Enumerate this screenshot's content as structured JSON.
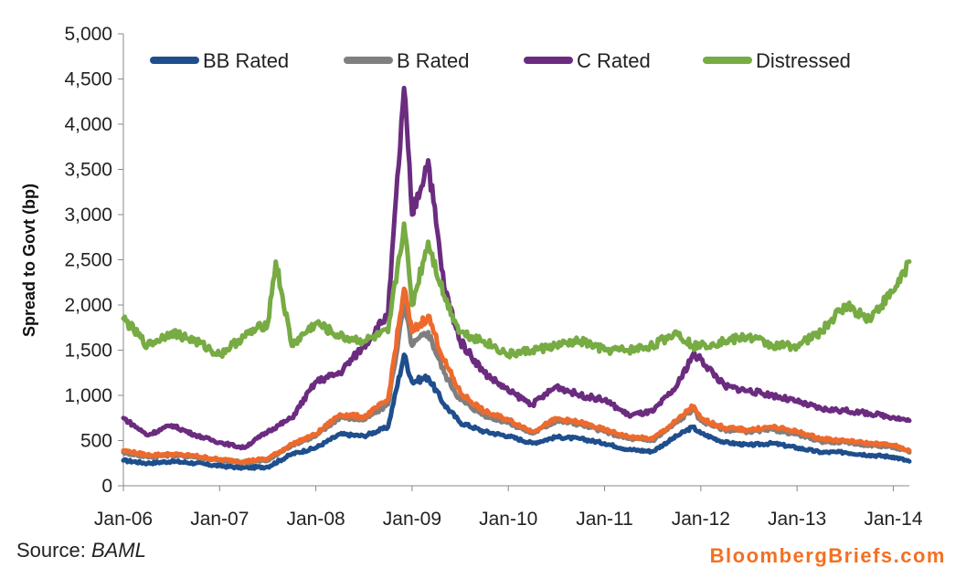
{
  "chart_data": {
    "type": "line",
    "title": "",
    "xlabel": "",
    "ylabel": "Spread to Govt (bp)",
    "ylim": [
      0,
      5000
    ],
    "y_ticks": [
      "0",
      "500",
      "1,000",
      "1,500",
      "2,000",
      "2,500",
      "3,000",
      "3,500",
      "4,000",
      "4,500",
      "5,000"
    ],
    "x_ticks": [
      "Jan-06",
      "Jan-07",
      "Jan-08",
      "Jan-09",
      "Jan-10",
      "Jan-11",
      "Jan-12",
      "Jan-13",
      "Jan-14"
    ],
    "x_range": [
      "2006-01",
      "2014-03"
    ],
    "grid": false,
    "legend_position": "top",
    "series": [
      {
        "name": "BB Rated",
        "color": "#1f4e8c",
        "x": [
          "2006-01",
          "2006-04",
          "2006-07",
          "2006-10",
          "2007-01",
          "2007-04",
          "2007-07",
          "2007-10",
          "2008-01",
          "2008-04",
          "2008-07",
          "2008-10",
          "2008-12",
          "2009-01",
          "2009-03",
          "2009-05",
          "2009-07",
          "2009-10",
          "2010-01",
          "2010-04",
          "2010-07",
          "2010-10",
          "2011-01",
          "2011-04",
          "2011-07",
          "2011-10",
          "2011-12",
          "2012-01",
          "2012-04",
          "2012-07",
          "2012-10",
          "2013-01",
          "2013-04",
          "2013-07",
          "2013-10",
          "2014-01",
          "2014-03"
        ],
        "values": [
          280,
          250,
          270,
          250,
          220,
          200,
          210,
          350,
          420,
          570,
          550,
          650,
          1450,
          1150,
          1200,
          900,
          700,
          600,
          550,
          470,
          540,
          520,
          470,
          400,
          380,
          550,
          650,
          580,
          480,
          450,
          470,
          420,
          370,
          370,
          340,
          320,
          270
        ]
      },
      {
        "name": "B Rated",
        "color": "#7f7f7f",
        "x": [
          "2006-01",
          "2006-04",
          "2006-07",
          "2006-10",
          "2007-01",
          "2007-04",
          "2007-07",
          "2007-10",
          "2008-01",
          "2008-04",
          "2008-07",
          "2008-10",
          "2008-12",
          "2009-01",
          "2009-03",
          "2009-05",
          "2009-07",
          "2009-10",
          "2010-01",
          "2010-04",
          "2010-07",
          "2010-10",
          "2011-01",
          "2011-04",
          "2011-07",
          "2011-10",
          "2011-12",
          "2012-01",
          "2012-04",
          "2012-07",
          "2012-10",
          "2013-01",
          "2013-04",
          "2013-07",
          "2013-10",
          "2014-01",
          "2014-03"
        ],
        "values": [
          370,
          320,
          340,
          320,
          280,
          260,
          280,
          450,
          550,
          760,
          730,
          900,
          2000,
          1550,
          1700,
          1250,
          950,
          780,
          700,
          580,
          720,
          680,
          600,
          520,
          500,
          700,
          850,
          720,
          620,
          600,
          620,
          570,
          490,
          480,
          450,
          430,
          370
        ]
      },
      {
        "name": "",
        "color": "#ee6a2c",
        "x": [
          "2006-01",
          "2006-04",
          "2006-07",
          "2006-10",
          "2007-01",
          "2007-04",
          "2007-07",
          "2007-10",
          "2008-01",
          "2008-04",
          "2008-07",
          "2008-10",
          "2008-12",
          "2009-01",
          "2009-03",
          "2009-05",
          "2009-07",
          "2009-10",
          "2010-01",
          "2010-04",
          "2010-07",
          "2010-10",
          "2011-01",
          "2011-04",
          "2011-07",
          "2011-10",
          "2011-12",
          "2012-01",
          "2012-04",
          "2012-07",
          "2012-10",
          "2013-01",
          "2013-04",
          "2013-07",
          "2013-10",
          "2014-01",
          "2014-03"
        ],
        "values": [
          390,
          340,
          350,
          330,
          290,
          270,
          300,
          460,
          570,
          790,
          760,
          950,
          2180,
          1700,
          1880,
          1380,
          1030,
          820,
          730,
          600,
          740,
          700,
          620,
          540,
          520,
          720,
          880,
          740,
          640,
          620,
          650,
          600,
          520,
          500,
          470,
          450,
          390
        ]
      },
      {
        "name": "C Rated",
        "color": "#6b2c80",
        "x": [
          "2006-01",
          "2006-04",
          "2006-07",
          "2006-10",
          "2007-01",
          "2007-04",
          "2007-07",
          "2007-10",
          "2008-01",
          "2008-04",
          "2008-07",
          "2008-10",
          "2008-12",
          "2009-01",
          "2009-03",
          "2009-05",
          "2009-07",
          "2009-10",
          "2010-01",
          "2010-04",
          "2010-07",
          "2010-10",
          "2011-01",
          "2011-04",
          "2011-07",
          "2011-10",
          "2011-12",
          "2012-01",
          "2012-04",
          "2012-07",
          "2012-10",
          "2013-01",
          "2013-04",
          "2013-07",
          "2013-10",
          "2014-01",
          "2014-03"
        ],
        "values": [
          750,
          560,
          670,
          560,
          480,
          420,
          600,
          750,
          1150,
          1250,
          1550,
          1900,
          4400,
          3000,
          3600,
          2200,
          1600,
          1250,
          1050,
          900,
          1100,
          1000,
          950,
          780,
          820,
          1100,
          1450,
          1400,
          1100,
          1050,
          1000,
          930,
          850,
          830,
          800,
          760,
          720
        ]
      },
      {
        "name": "Distressed",
        "color": "#77ab43",
        "x": [
          "2006-01",
          "2006-04",
          "2006-07",
          "2006-10",
          "2007-01",
          "2007-04",
          "2007-07",
          "2007-08",
          "2007-10",
          "2008-01",
          "2008-04",
          "2008-07",
          "2008-10",
          "2008-12",
          "2009-01",
          "2009-03",
          "2009-05",
          "2009-07",
          "2009-10",
          "2010-01",
          "2010-04",
          "2010-07",
          "2010-10",
          "2011-01",
          "2011-04",
          "2011-07",
          "2011-10",
          "2011-12",
          "2012-01",
          "2012-04",
          "2012-07",
          "2012-10",
          "2013-01",
          "2013-04",
          "2013-07",
          "2013-10",
          "2014-01",
          "2014-03"
        ],
        "values": [
          1850,
          1550,
          1700,
          1600,
          1450,
          1650,
          1800,
          2480,
          1550,
          1800,
          1650,
          1600,
          1700,
          2900,
          2000,
          2700,
          2100,
          1700,
          1600,
          1450,
          1500,
          1550,
          1600,
          1500,
          1500,
          1550,
          1700,
          1550,
          1550,
          1600,
          1650,
          1550,
          1550,
          1700,
          2000,
          1850,
          2150,
          2480
        ]
      }
    ]
  },
  "source": {
    "label": "Source:",
    "name": "BAML"
  },
  "brand": "BloombergBriefs.com"
}
